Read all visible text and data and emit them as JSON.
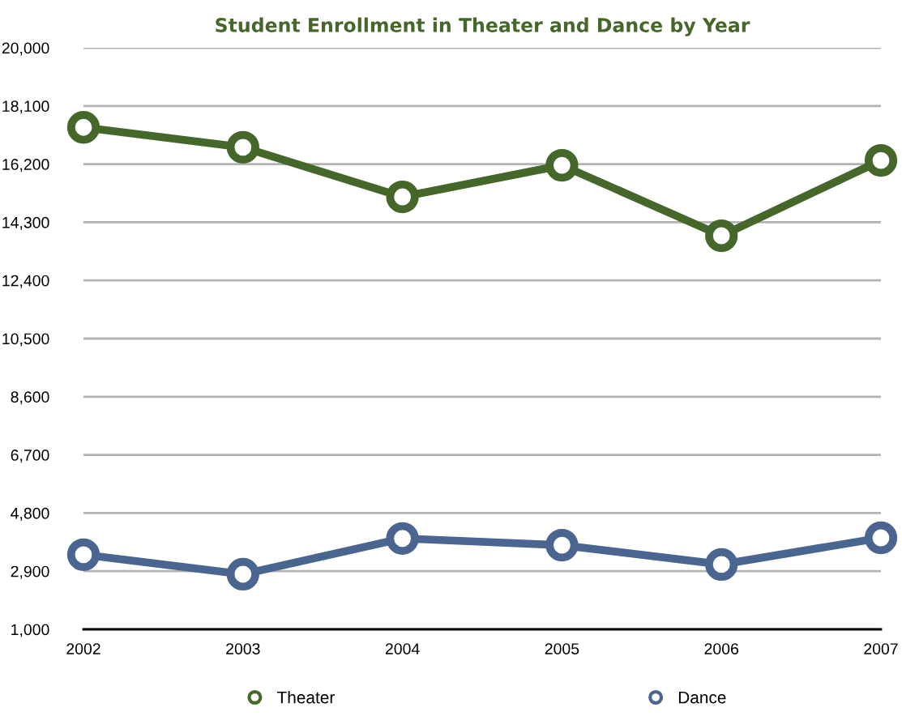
{
  "chart_data": {
    "type": "line",
    "title": "Student Enrollment in Theater and Dance by Year",
    "categories": [
      "2002",
      "2003",
      "2004",
      "2005",
      "2006",
      "2007"
    ],
    "series": [
      {
        "name": "Theater",
        "color": "#45672a",
        "values": [
          17400,
          16750,
          15130,
          16160,
          13860,
          16320
        ]
      },
      {
        "name": "Dance",
        "color": "#4a6690",
        "values": [
          3440,
          2800,
          3970,
          3750,
          3120,
          3990
        ]
      }
    ],
    "ylim": [
      1000,
      20000
    ],
    "yticks": [
      {
        "value": 1000,
        "label": "1,000"
      },
      {
        "value": 2900,
        "label": "2,900"
      },
      {
        "value": 4800,
        "label": "4,800"
      },
      {
        "value": 6700,
        "label": "6,700"
      },
      {
        "value": 8600,
        "label": "8,600"
      },
      {
        "value": 10500,
        "label": "10,500"
      },
      {
        "value": 12400,
        "label": "12,400"
      },
      {
        "value": 14300,
        "label": "14,300"
      },
      {
        "value": 16200,
        "label": "16,200"
      },
      {
        "value": 18100,
        "label": "18,100"
      },
      {
        "value": 20000,
        "label": "20,000"
      }
    ],
    "grid": "y",
    "legend": "bottom",
    "marker": "circle",
    "line_style": "solid"
  }
}
